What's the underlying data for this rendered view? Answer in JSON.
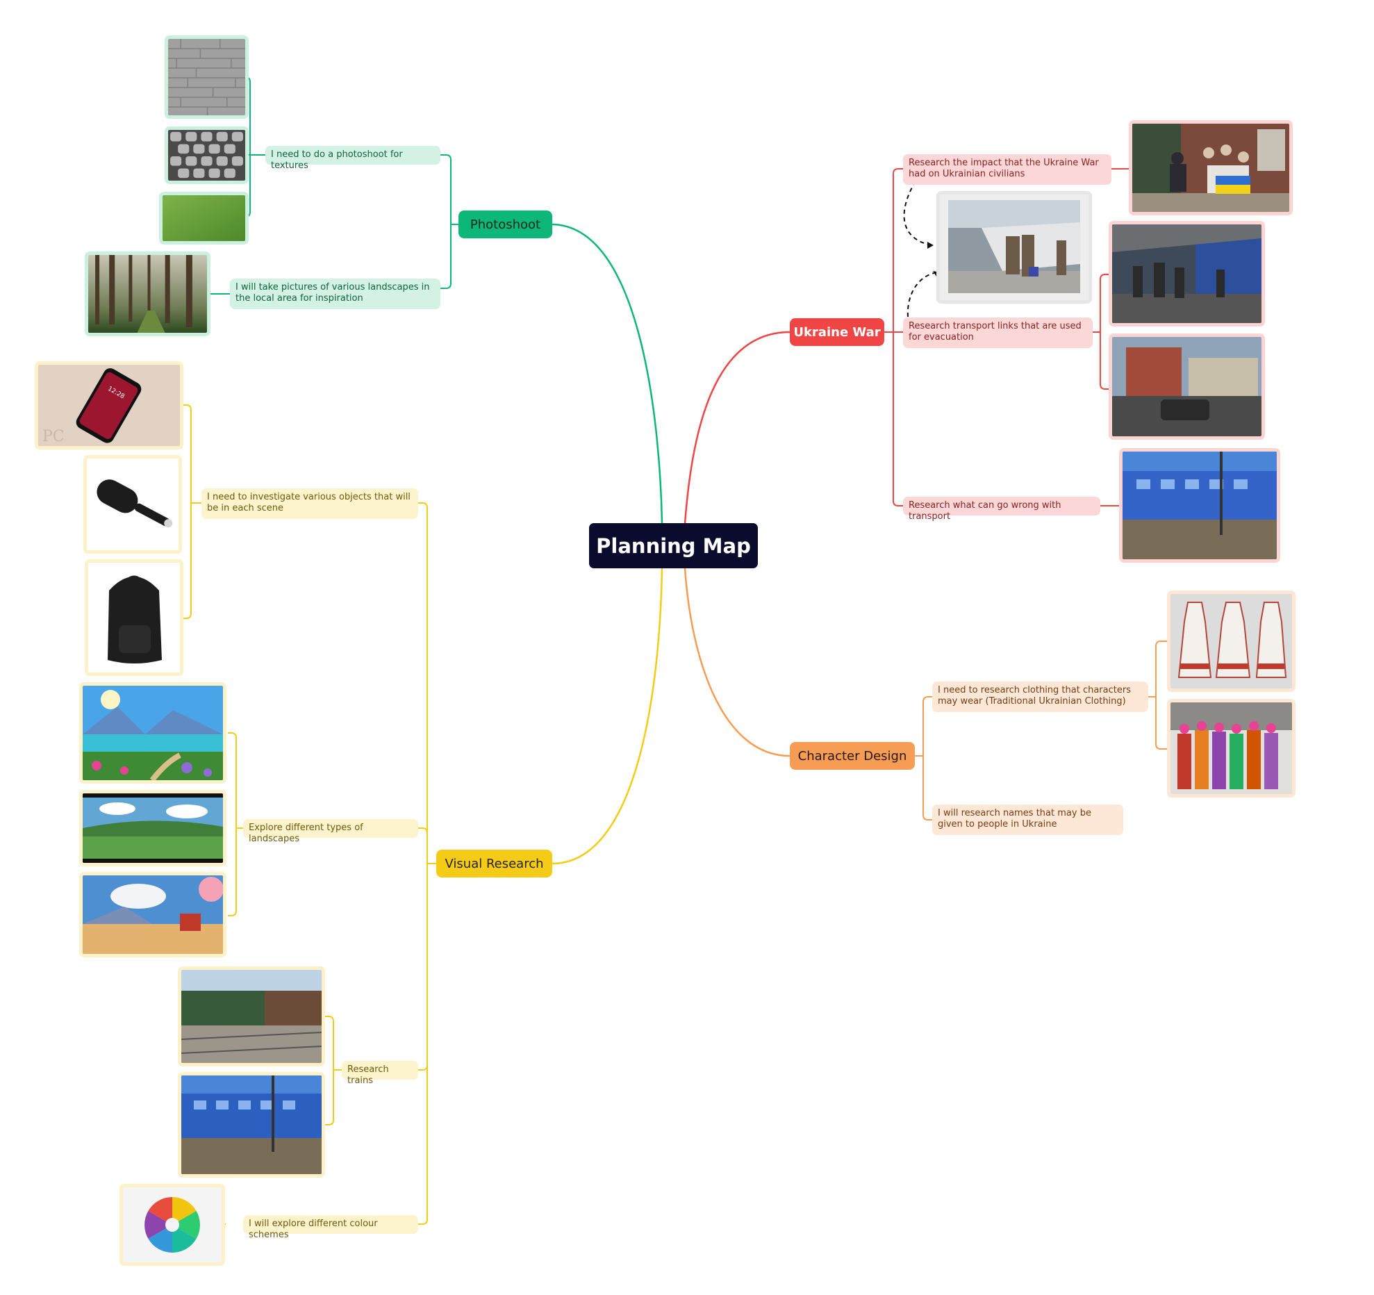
{
  "central": {
    "title": "Planning Map"
  },
  "photoshoot": {
    "label": "Photoshoot",
    "color": "#0db679",
    "textures": "I need to do a photoshoot for textures",
    "landscapes": "I will take pictures of various landscapes in the local area for inspiration"
  },
  "ukraine": {
    "label": "Ukraine War",
    "color": "#f04545",
    "impact": "Research the impact that the Ukraine War had on Ukrainian civilians",
    "transport": "Research transport links that are used for evacuation",
    "wrong": "Research what can go wrong with transport"
  },
  "character": {
    "label": "Character Design",
    "color": "#f59d55",
    "clothing": "I need to research clothing that characters may wear (Traditional Ukrainian Clothing)",
    "names": "I will research names that may be given to people in Ukraine"
  },
  "visual": {
    "label": "Visual Research",
    "color": "#f4cc18",
    "objects": "I need to investigate various objects that will be in each scene",
    "landscapes": "Explore different types of landscapes",
    "trains": "Research trains",
    "colours": "I will explore different colour schemes"
  },
  "images": {
    "phone_watermark": "PC",
    "phone_time": "12:28"
  }
}
